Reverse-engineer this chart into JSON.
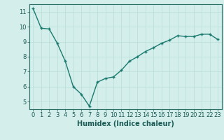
{
  "x": [
    0,
    1,
    2,
    3,
    4,
    5,
    6,
    7,
    8,
    9,
    10,
    11,
    12,
    13,
    14,
    15,
    16,
    17,
    18,
    19,
    20,
    21,
    22,
    23
  ],
  "y": [
    11.2,
    9.9,
    9.85,
    8.9,
    7.7,
    6.0,
    5.5,
    4.7,
    6.3,
    6.55,
    6.65,
    7.1,
    7.7,
    8.0,
    8.35,
    8.6,
    8.9,
    9.1,
    9.4,
    9.35,
    9.35,
    9.5,
    9.5,
    9.15
  ],
  "line_color": "#1a7a6e",
  "marker": "+",
  "marker_size": 3,
  "line_width": 1.0,
  "xlabel": "Humidex (Indice chaleur)",
  "ylim": [
    4.5,
    11.5
  ],
  "xlim": [
    -0.5,
    23.5
  ],
  "bg_color": "#d4eeeb",
  "grid_color": "#b8ddd8",
  "axis_color": "#2a6e68",
  "tick_color": "#1a5a54",
  "label_color": "#1a5a54",
  "yticks": [
    5,
    6,
    7,
    8,
    9,
    10,
    11
  ],
  "xticks": [
    0,
    1,
    2,
    3,
    4,
    5,
    6,
    7,
    8,
    9,
    10,
    11,
    12,
    13,
    14,
    15,
    16,
    17,
    18,
    19,
    20,
    21,
    22,
    23
  ],
  "xlabel_fontsize": 7,
  "tick_fontsize": 6
}
